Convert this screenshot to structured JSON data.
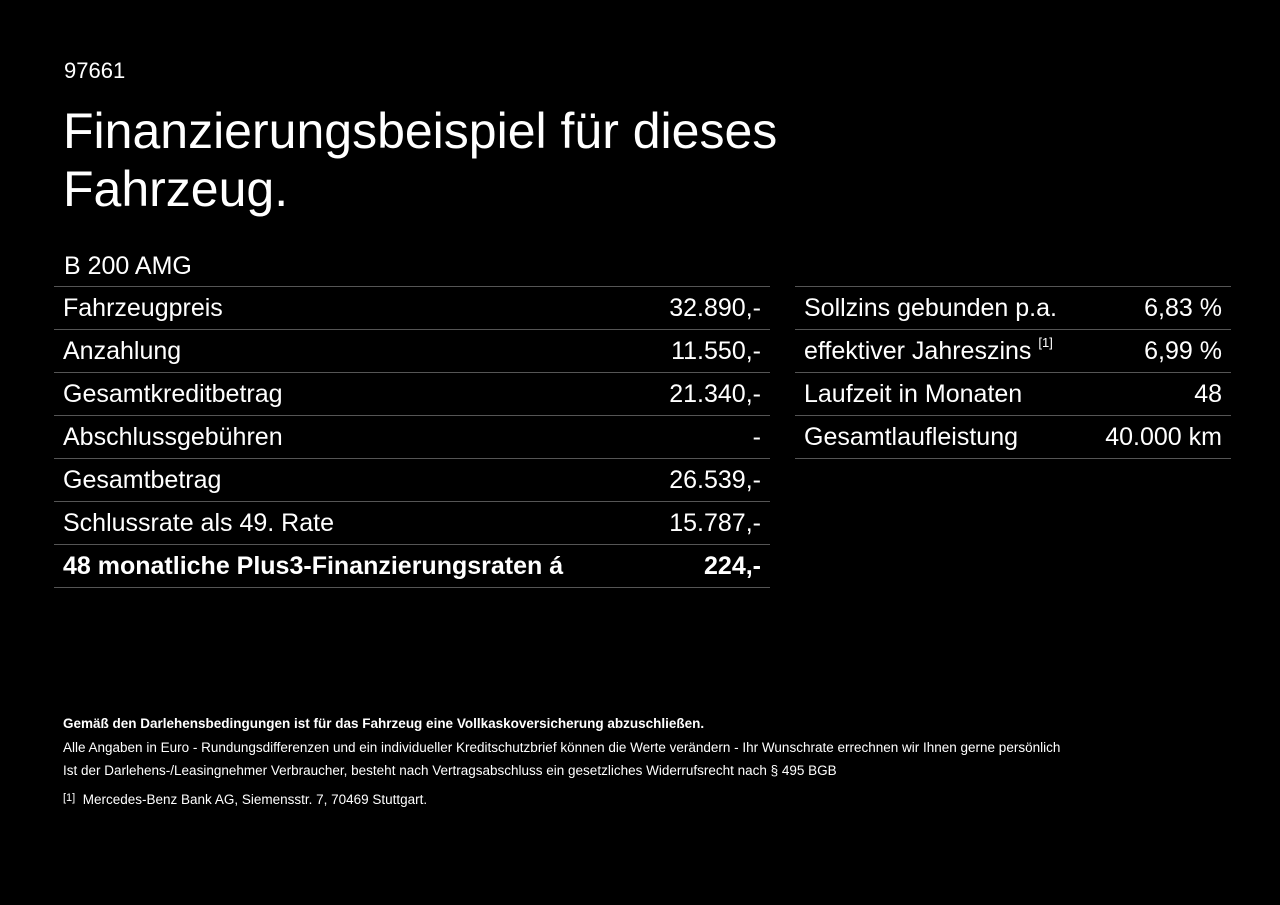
{
  "header": {
    "id": "97661",
    "title_line1": "Finanzierungsbeispiel für dieses",
    "title_line2": "Fahrzeug.",
    "model": "B 200 AMG"
  },
  "left_table": {
    "rows": [
      [
        "Fahrzeugpreis",
        "32.890,-"
      ],
      [
        "Anzahlung",
        "11.550,-"
      ],
      [
        "Gesamtkreditbetrag",
        "21.340,-"
      ],
      [
        "Abschlussgebühren",
        "-"
      ],
      [
        "Gesamtbetrag",
        "26.539,-"
      ],
      [
        "Schlussrate als 49. Rate",
        "15.787,-"
      ],
      [
        "48 monatliche Plus3-Finanzierungsraten á",
        "224,-"
      ]
    ]
  },
  "right_table": {
    "rows": [
      [
        "Sollzins gebunden p.a.",
        "6,83 %"
      ],
      [
        "effektiver Jahreszins",
        "6,99 %"
      ],
      [
        "Laufzeit in Monaten",
        "48"
      ],
      [
        "Gesamtlaufleistung",
        "40.000 km"
      ]
    ],
    "footnote_ref": "[1]"
  },
  "footer": {
    "bold_note": "Gemäß den Darlehensbedingungen ist für das Fahrzeug eine Vollkaskoversicherung abzuschließen.",
    "line1": "Alle Angaben in Euro - Rundungsdifferenzen und ein individueller Kreditschutzbrief können die Werte verändern - Ihr Wunschrate errechnen wir Ihnen gerne persönlich",
    "line2": "Ist der Darlehens-/Leasingnehmer Verbraucher, besteht nach Vertragsabschluss ein gesetzliches Widerrufsrecht nach § 495 BGB",
    "footnote_marker": "[1]",
    "footnote_text": "Mercedes-Benz Bank AG, Siemensstr. 7, 70469 Stuttgart."
  }
}
